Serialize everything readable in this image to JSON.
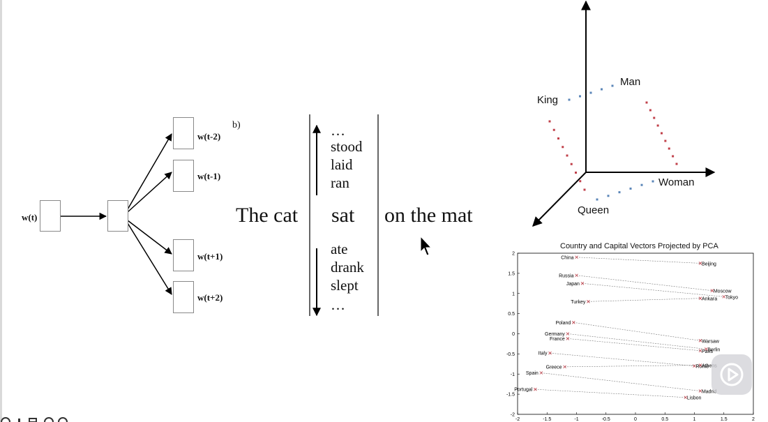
{
  "skipgram": {
    "input": "w(t)",
    "outputs": [
      "w(t-2)",
      "w(t-1)",
      "w(t+1)",
      "w(t+2)"
    ],
    "panel_label": "b)"
  },
  "sentence": {
    "left": "The cat",
    "center": "sat",
    "right": "on the mat",
    "above": [
      "…",
      "stood",
      "laid",
      "ran"
    ],
    "below": [
      "ate",
      "drank",
      "slept",
      "…"
    ]
  },
  "vectors3d": {
    "labels": {
      "king": "King",
      "man": "Man",
      "woman": "Woman",
      "queen": "Queen"
    },
    "colors": {
      "gender": "#c0404a",
      "royalty": "#5b86b8"
    }
  },
  "pca": {
    "title": "Country and Capital Vectors Projected by PCA",
    "chart_data": {
      "type": "scatter",
      "title": "Country and Capital Vectors Projected by PCA",
      "xlim": [
        -2,
        2
      ],
      "ylim": [
        -2,
        2
      ],
      "x_ticks": [
        "-2",
        "-1.5",
        "-1",
        "-0.5",
        "0",
        "0.5",
        "1",
        "1.5",
        "2"
      ],
      "y_ticks": [
        "2",
        "1.5",
        "1",
        "0.5",
        "0",
        "-0.5",
        "-1",
        "-1.5",
        "-2"
      ],
      "pairs": [
        {
          "country": "China",
          "cx": -1.0,
          "cy": 1.9,
          "capital": "Beijing",
          "px": 1.1,
          "py": 1.75
        },
        {
          "country": "Russia",
          "cx": -1.0,
          "cy": 1.45,
          "capital": "Moscow",
          "px": 1.3,
          "py": 1.07
        },
        {
          "country": "Japan",
          "cx": -0.9,
          "cy": 1.25,
          "capital": "Tokyo",
          "px": 1.5,
          "py": 0.92
        },
        {
          "country": "Turkey",
          "cx": -0.8,
          "cy": 0.8,
          "capital": "Ankara",
          "px": 1.1,
          "py": 0.88
        },
        {
          "country": "Poland",
          "cx": -1.05,
          "cy": 0.28,
          "capital": "Warsaw",
          "px": 1.1,
          "py": -0.17
        },
        {
          "country": "Germany",
          "cx": -1.15,
          "cy": 0.0,
          "capital": "Berlin",
          "px": 1.2,
          "py": -0.38
        },
        {
          "country": "France",
          "cx": -1.15,
          "cy": -0.12,
          "capital": "Paris",
          "px": 1.1,
          "py": -0.42
        },
        {
          "country": "Italy",
          "cx": -1.45,
          "cy": -0.48,
          "capital": "Rome",
          "px": 1.0,
          "py": -0.8
        },
        {
          "country": "Greece",
          "cx": -1.2,
          "cy": -0.82,
          "capital": "Athens",
          "px": 1.1,
          "py": -0.78
        },
        {
          "country": "Spain",
          "cx": -1.6,
          "cy": -0.97,
          "capital": "Madrid",
          "px": 1.1,
          "py": -1.42
        },
        {
          "country": "Portugal",
          "cx": -1.7,
          "cy": -1.38,
          "capital": "Lisbon",
          "px": 0.85,
          "py": -1.58
        }
      ]
    }
  }
}
